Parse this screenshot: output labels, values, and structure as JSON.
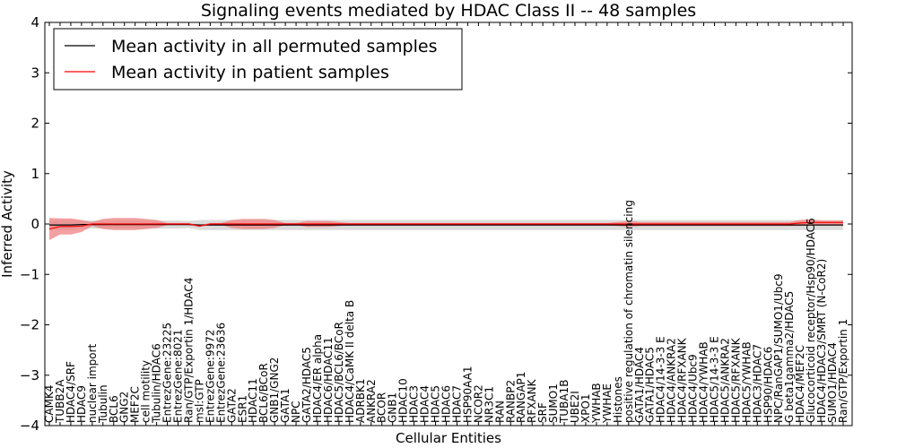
{
  "chart_data": {
    "type": "line",
    "title": "Signaling events mediated by HDAC Class II -- 48 samples",
    "xlabel": "Cellular Entities",
    "ylabel": "Inferred Activity",
    "ylim": [
      -4,
      4
    ],
    "yticks": [
      -4,
      -3,
      -2,
      -1,
      0,
      1,
      2,
      3,
      4
    ],
    "yticks_text": [
      "−4",
      "−3",
      "−2",
      "−1",
      "0",
      "1",
      "2",
      "3",
      "4"
    ],
    "legend": {
      "position": "top-left",
      "entries": [
        "Mean activity in all permuted samples",
        "Mean activity in patient samples"
      ]
    },
    "colors": {
      "permuted": "#000000",
      "patient": "#ff0000",
      "permuted_band": "#cccccc",
      "patient_band": "#f08080"
    },
    "categories": [
      "CAMK4",
      "TUBB2A",
      "HDAC4/SRF",
      "HDAC9",
      "nuclear import",
      "Tubulin",
      "BCL6",
      "GNG2",
      "MEF2C",
      "cell motility",
      "Tubulin/HDAC6",
      "EntrezGene:23225",
      "EntrezGene:8021",
      "Ran/GTP/Exportin 1/HDAC4",
      "msl:GTP",
      "EntrezGene:9972",
      "EntrezGene:23636",
      "GATA2",
      "ESR1",
      "HDAC11",
      "BCL6/BCoR",
      "GNB1/GNG2",
      "GATA1",
      "NPC",
      "GATA2/HDAC5",
      "HDAC4/ER alpha",
      "HDAC6/HDAC11",
      "HDAC5/BCL6/BCoR",
      "HDAC4/CaMK II delta B",
      "ADRBK1",
      "ANKRA2",
      "BCOR",
      "GNB1",
      "HDAC10",
      "HDAC3",
      "HDAC4",
      "HDAC5",
      "HDAC6",
      "HDAC7",
      "HSP90AA1",
      "NCOR2",
      "NR3C1",
      "RAN",
      "RANBP2",
      "RANGAP1",
      "RFXANK",
      "SRF",
      "SUMO1",
      "TUBA1B",
      "UBE2I",
      "XPO1",
      "YWHAB",
      "YWHAE",
      "Histones",
      "positive regulation of chromatin silencing",
      "GATA1/HDAC4",
      "GATA1/HDAC5",
      "HDAC4/14-3-3 E",
      "HDAC4/ANKRA2",
      "HDAC4/RFXANK",
      "HDAC4/Ubc9",
      "HDAC4/YWHAB",
      "HDAC5/14-3-3 E",
      "HDAC5/ANKRA2",
      "HDAC5/RFXANK",
      "HDAC5/YWHAB",
      "HDAC3/HDAC7",
      "HSP90/HDAC6",
      "NPC/RanGAP1/SUMO1/Ubc9",
      "G beta1gamma2/HDAC5",
      "HDAC4/MEF2C",
      "Glucocorticoid receptor/Hsp90/HDAC6",
      "HDAC4/HDAC3/SMRT (N-CoR2)",
      "SUMO1/HDAC4",
      "Ran/GTP/Exportin 1"
    ],
    "series": [
      {
        "name": "Mean activity in all permuted samples",
        "values": [
          -0.02,
          -0.02,
          -0.02,
          -0.01,
          -0.01,
          -0.01,
          -0.01,
          -0.01,
          -0.01,
          -0.01,
          -0.01,
          -0.01,
          -0.01,
          -0.01,
          -0.02,
          -0.02,
          -0.02,
          -0.02,
          -0.02,
          -0.02,
          -0.02,
          -0.02,
          -0.02,
          -0.02,
          -0.02,
          -0.02,
          -0.02,
          -0.02,
          -0.02,
          -0.02,
          -0.02,
          -0.02,
          -0.02,
          -0.02,
          -0.02,
          -0.02,
          -0.02,
          -0.02,
          -0.02,
          -0.02,
          -0.02,
          -0.02,
          -0.02,
          -0.02,
          -0.02,
          -0.02,
          -0.02,
          -0.02,
          -0.02,
          -0.02,
          -0.02,
          -0.02,
          -0.02,
          -0.02,
          -0.02,
          -0.02,
          -0.02,
          -0.02,
          -0.02,
          -0.02,
          -0.02,
          -0.02,
          -0.02,
          -0.02,
          -0.02,
          -0.02,
          -0.02,
          -0.02,
          -0.02,
          -0.02,
          -0.02,
          -0.02,
          -0.02,
          -0.02,
          -0.02
        ],
        "band": [
          0.1,
          0.1,
          0.1,
          0.08,
          0.08,
          0.08,
          0.08,
          0.08,
          0.08,
          0.08,
          0.08,
          0.08,
          0.08,
          0.07,
          0.1,
          0.1,
          0.1,
          0.1,
          0.1,
          0.1,
          0.1,
          0.1,
          0.1,
          0.1,
          0.1,
          0.1,
          0.1,
          0.1,
          0.1,
          0.1,
          0.1,
          0.1,
          0.1,
          0.1,
          0.1,
          0.1,
          0.1,
          0.1,
          0.1,
          0.1,
          0.1,
          0.1,
          0.1,
          0.1,
          0.1,
          0.1,
          0.1,
          0.1,
          0.1,
          0.1,
          0.1,
          0.1,
          0.1,
          0.1,
          0.1,
          0.1,
          0.1,
          0.1,
          0.1,
          0.1,
          0.1,
          0.1,
          0.1,
          0.1,
          0.1,
          0.1,
          0.1,
          0.1,
          0.1,
          0.1,
          0.1,
          0.1,
          0.1,
          0.1,
          0.1
        ]
      },
      {
        "name": "Mean activity in patient samples",
        "values": [
          -0.1,
          -0.05,
          -0.05,
          -0.04,
          0.0,
          0.0,
          0.0,
          0.0,
          0.0,
          0.0,
          0.0,
          0.0,
          0.0,
          0.0,
          -0.04,
          0.0,
          0.0,
          0.0,
          0.0,
          0.0,
          0.0,
          0.0,
          0.0,
          0.0,
          0.0,
          0.0,
          0.0,
          0.0,
          0.0,
          0.0,
          0.0,
          0.0,
          0.0,
          0.0,
          0.0,
          0.0,
          0.0,
          0.0,
          0.0,
          0.0,
          0.0,
          0.0,
          0.0,
          0.0,
          0.0,
          0.0,
          0.0,
          0.0,
          0.0,
          0.0,
          0.0,
          0.0,
          0.0,
          0.0,
          0.0,
          0.0,
          0.0,
          0.0,
          0.0,
          0.0,
          0.0,
          0.0,
          0.0,
          0.0,
          0.0,
          0.0,
          0.0,
          0.0,
          0.0,
          0.0,
          0.02,
          0.03,
          0.03,
          0.03,
          0.03
        ],
        "band": [
          0.22,
          0.16,
          0.16,
          0.12,
          0.04,
          0.1,
          0.12,
          0.12,
          0.12,
          0.1,
          0.08,
          0.02,
          0.02,
          0.02,
          0.02,
          0.02,
          0.02,
          0.08,
          0.1,
          0.1,
          0.1,
          0.08,
          0.02,
          0.02,
          0.06,
          0.06,
          0.06,
          0.04,
          0.02,
          0.02,
          0.02,
          0.02,
          0.02,
          0.02,
          0.02,
          0.02,
          0.02,
          0.02,
          0.02,
          0.02,
          0.02,
          0.02,
          0.02,
          0.02,
          0.02,
          0.02,
          0.02,
          0.02,
          0.02,
          0.02,
          0.02,
          0.02,
          0.02,
          0.04,
          0.06,
          0.04,
          0.04,
          0.04,
          0.04,
          0.04,
          0.04,
          0.04,
          0.04,
          0.04,
          0.04,
          0.04,
          0.04,
          0.04,
          0.04,
          0.04,
          0.06,
          0.06,
          0.04,
          0.04,
          0.04
        ]
      }
    ]
  }
}
